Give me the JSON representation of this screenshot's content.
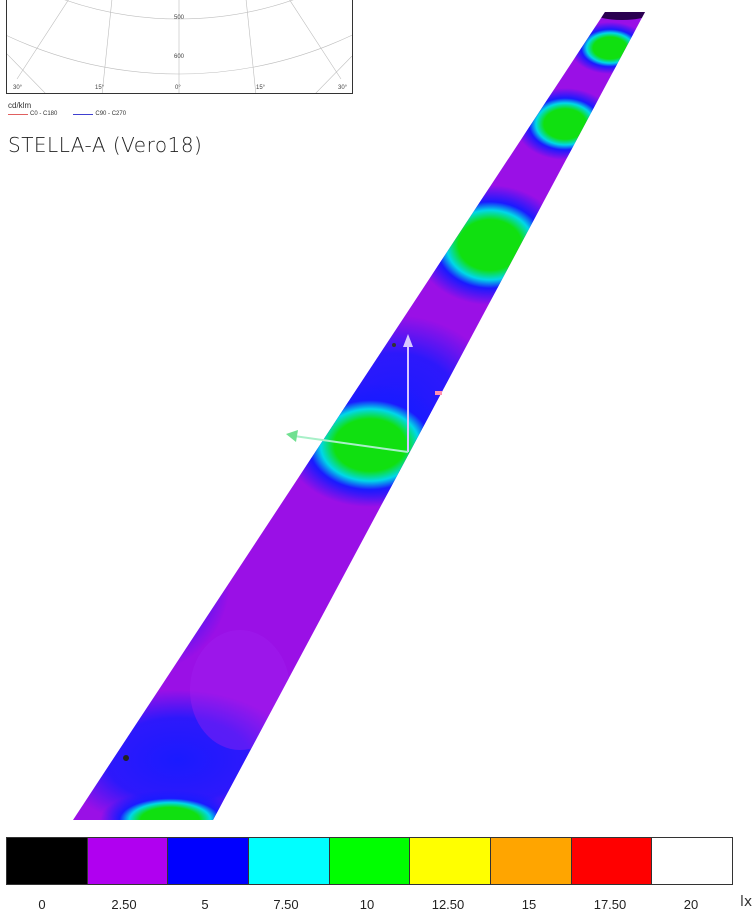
{
  "polar_diagram": {
    "radial_ticks": [
      "500",
      "600"
    ],
    "angle_ticks": [
      "30°",
      "15°",
      "0°",
      "15°",
      "30°"
    ],
    "unit": "cd/klm",
    "legend": [
      {
        "label": "C0 - C180",
        "color": "#e06060"
      },
      {
        "label": "C90 - C270",
        "color": "#4040d0"
      }
    ]
  },
  "luminaire_title": "STELLA-A (Vero18)",
  "false_color_scale": {
    "unit": "lx",
    "swatches": [
      "#000000",
      "#b000f0",
      "#0000ff",
      "#00ffff",
      "#00ff00",
      "#ffff00",
      "#ffa500",
      "#ff0000",
      "#ffffff"
    ],
    "labels": [
      "0",
      "2.50",
      "5",
      "7.50",
      "10",
      "12.50",
      "15",
      "17.50",
      "20"
    ]
  },
  "road_colors": {
    "base": "#9a10e6",
    "blue": "#1a1aff",
    "green": "#10e010",
    "cyan": "#00d8e8",
    "dark": "#2a0050"
  }
}
